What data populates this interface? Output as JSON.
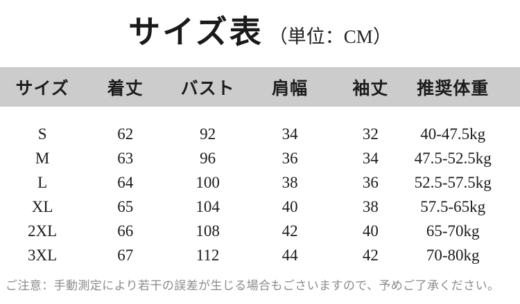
{
  "title": {
    "main": "サイズ表",
    "unit_label": "（単位：CM）"
  },
  "colors": {
    "background": "#ffffff",
    "header_band": "#cccccc",
    "table_text": "#1a1a1a",
    "note_text": "#8c8c8c"
  },
  "chart_data": {
    "type": "table",
    "title": "サイズ表",
    "unit_label": "（単位：CM）",
    "unit": "CM",
    "columns": [
      "サイズ",
      "着丈",
      "バスト",
      "肩幅",
      "袖丈",
      "推奨体重"
    ],
    "rows": [
      [
        "S",
        "62",
        "92",
        "34",
        "32",
        "40-47.5kg"
      ],
      [
        "M",
        "63",
        "96",
        "36",
        "34",
        "47.5-52.5kg"
      ],
      [
        "L",
        "64",
        "100",
        "38",
        "36",
        "52.5-57.5kg"
      ],
      [
        "XL",
        "65",
        "104",
        "40",
        "38",
        "57.5-65kg"
      ],
      [
        "2XL",
        "66",
        "108",
        "42",
        "40",
        "65-70kg"
      ],
      [
        "3XL",
        "67",
        "112",
        "44",
        "42",
        "70-80kg"
      ]
    ],
    "note": "ご注意：手動測定により若干の誤差が生じる場合もごさいますので、予めご了承ください。"
  }
}
